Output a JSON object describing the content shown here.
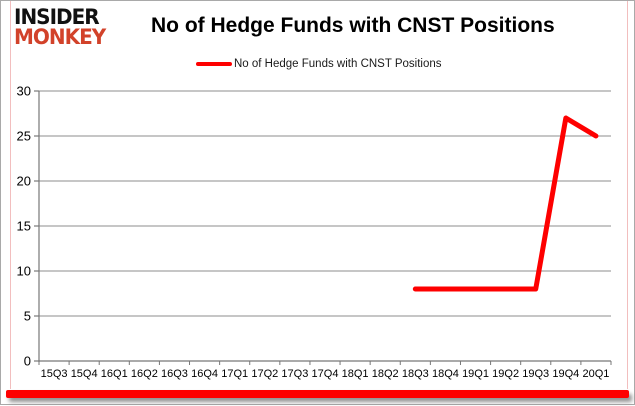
{
  "brand": {
    "line1": "INSIDER",
    "line2": "MONKEY",
    "brand_color": "#d2422a"
  },
  "header": {
    "title": "No of Hedge Funds with CNST Positions"
  },
  "legend": {
    "items": [
      {
        "label": "No of Hedge Funds with CNST Positions",
        "color": "#fe0000"
      }
    ]
  },
  "chart_data": {
    "type": "line",
    "title": "No of Hedge Funds with CNST Positions",
    "categories": [
      "15Q3",
      "15Q4",
      "16Q1",
      "16Q2",
      "16Q3",
      "16Q4",
      "17Q1",
      "17Q2",
      "17Q3",
      "17Q4",
      "18Q1",
      "18Q2",
      "18Q3",
      "18Q4",
      "19Q1",
      "19Q2",
      "19Q3",
      "19Q4",
      "20Q1"
    ],
    "series": [
      {
        "name": "No of Hedge Funds with CNST Positions",
        "color": "#fe0000",
        "values": [
          null,
          null,
          null,
          null,
          null,
          null,
          null,
          null,
          null,
          null,
          null,
          null,
          8,
          8,
          8,
          8,
          8,
          27,
          25
        ]
      }
    ],
    "ylim": [
      0,
      30
    ],
    "yticks": [
      0,
      5,
      10,
      15,
      20,
      25,
      30
    ],
    "xlabel": "",
    "ylabel": "",
    "grid": true,
    "legend_position": "top-center",
    "grid_color": "#8e8e8e",
    "axis_color": "#777777",
    "tick_label_color": "#000000"
  }
}
